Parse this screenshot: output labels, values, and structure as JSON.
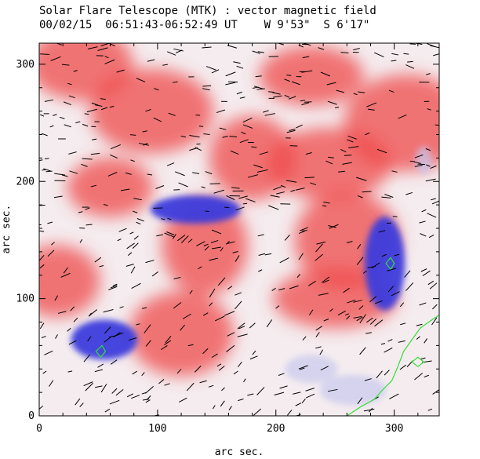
{
  "header": {
    "title": "Solar Flare Telescope (MTK) : vector magnetic field",
    "subtitle": "00/02/15  06:51:43-06:52:49 UT    W 9'53\"  S 6'17\""
  },
  "chart_data": {
    "type": "heatmap",
    "xlabel": "arc sec.",
    "ylabel": "arc sec.",
    "xlim": [
      0,
      338
    ],
    "ylim": [
      0,
      318
    ],
    "xticks": [
      0,
      100,
      200,
      300
    ],
    "yticks": [
      0,
      100,
      200,
      300
    ],
    "colors": {
      "positive": "#ef4a4a",
      "negative": "#3c3cdc",
      "neutral": "#f4ecef",
      "contour": "#33dd33",
      "vector": "#000000"
    },
    "positive_polarity_regions": [
      {
        "x": 60,
        "y": 195
      },
      {
        "x": 35,
        "y": 300
      },
      {
        "x": 95,
        "y": 260
      },
      {
        "x": 140,
        "y": 145
      },
      {
        "x": 230,
        "y": 290
      },
      {
        "x": 245,
        "y": 215
      },
      {
        "x": 180,
        "y": 220
      },
      {
        "x": 260,
        "y": 150
      },
      {
        "x": 250,
        "y": 100
      },
      {
        "x": 15,
        "y": 115
      },
      {
        "x": 120,
        "y": 70
      },
      {
        "x": 310,
        "y": 250
      }
    ],
    "negative_polarity_regions": [
      {
        "x": 132,
        "y": 176,
        "rx": 38,
        "ry": 12
      },
      {
        "x": 55,
        "y": 65,
        "rx": 28,
        "ry": 17
      },
      {
        "x": 292,
        "y": 130,
        "rx": 17,
        "ry": 40
      },
      {
        "x": 230,
        "y": 40,
        "rx": 22,
        "ry": 12
      },
      {
        "x": 265,
        "y": 22,
        "rx": 28,
        "ry": 13
      },
      {
        "x": 325,
        "y": 218,
        "rx": 7,
        "ry": 12
      }
    ],
    "contours": [
      {
        "points": [
          [
            260,
            0
          ],
          [
            272,
            8
          ],
          [
            283,
            14
          ],
          [
            290,
            22
          ],
          [
            298,
            30
          ],
          [
            303,
            42
          ],
          [
            308,
            55
          ],
          [
            315,
            65
          ],
          [
            322,
            75
          ],
          [
            332,
            82
          ],
          [
            338,
            86
          ]
        ]
      },
      {
        "points": [
          [
            297,
            125
          ],
          [
            300,
            130
          ],
          [
            297,
            135
          ],
          [
            293,
            130
          ],
          [
            297,
            125
          ]
        ]
      },
      {
        "points": [
          [
            52,
            50
          ],
          [
            56,
            55
          ],
          [
            53,
            60
          ],
          [
            48,
            55
          ],
          [
            52,
            50
          ]
        ]
      },
      {
        "points": [
          [
            320,
            42
          ],
          [
            325,
            46
          ],
          [
            320,
            50
          ],
          [
            315,
            46
          ],
          [
            320,
            42
          ]
        ]
      }
    ],
    "vector_field": {
      "note_in_image": "",
      "samples": [
        {
          "x": 130,
          "y": 250,
          "angle_deg": 0
        },
        {
          "x": 80,
          "y": 160,
          "angle_deg": 30
        },
        {
          "x": 290,
          "y": 140,
          "angle_deg": -20
        }
      ]
    }
  }
}
